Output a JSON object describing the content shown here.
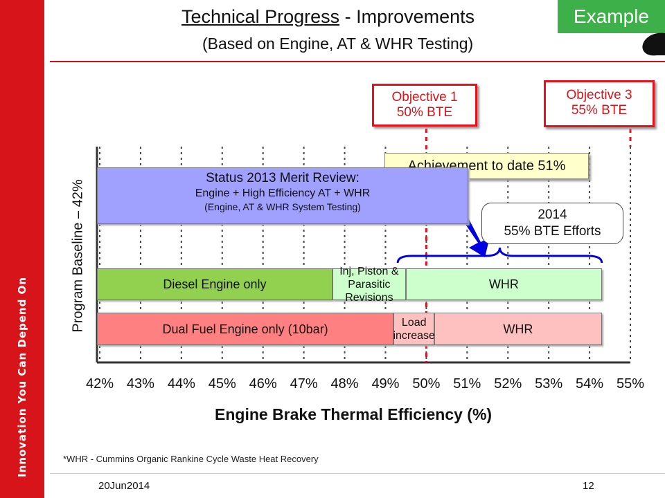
{
  "sidebar": {
    "tagline": "Innovation You Can Depend On"
  },
  "header": {
    "title_underlined": "Technical Progress",
    "title_rest": " - Improvements",
    "subtitle": "(Based on Engine, AT & WHR Testing)",
    "badge": "Example"
  },
  "colors": {
    "brand_red": "#d7141a",
    "badge_green": "#3eb049",
    "status_blue": "#a0a0ff",
    "diesel_green": "#92d050",
    "light_green": "#ccffcc",
    "dual_red": "#ff8080",
    "light_red": "#ffc0c0",
    "achievement_yellow": "#ffffcc",
    "arrow_blue": "#0000e0"
  },
  "annotations": {
    "objective1": {
      "line1": "Objective 1",
      "line2": "50% BTE",
      "x": 50
    },
    "objective3": {
      "line1": "Objective 3",
      "line2": "55% BTE",
      "x": 55
    },
    "achievement": "Achievement to date 51%",
    "efforts": {
      "line1": "2014",
      "line2": "55% BTE Efforts"
    },
    "status": {
      "line1": "Status 2013 Merit Review:",
      "line2": "Engine + High Efficiency AT + WHR",
      "line3": "(Engine, AT & WHR System Testing)"
    }
  },
  "chart_data": {
    "type": "bar",
    "orientation": "horizontal-stacked",
    "xlabel": "Engine Brake Thermal Efficiency (%)",
    "ylabel": "Program Baseline – 42%",
    "xlim": [
      42,
      55
    ],
    "x_ticks": [
      "42%",
      "43%",
      "44%",
      "45%",
      "46%",
      "47%",
      "48%",
      "49%",
      "50%",
      "51%",
      "52%",
      "53%",
      "54%",
      "55%"
    ],
    "grid": "vertical dashed",
    "rows": [
      {
        "segments": [
          {
            "label": "Diesel Engine only",
            "start": 42,
            "end": 47.7,
            "color": "#92d050"
          },
          {
            "label": "Inj, Piston & Parasitic Revisions",
            "start": 47.7,
            "end": 49.5,
            "color": "#ccffcc"
          },
          {
            "label": "WHR",
            "start": 49.5,
            "end": 54.3,
            "color": "#ccffcc"
          }
        ]
      },
      {
        "segments": [
          {
            "label": "Dual Fuel Engine only (10bar)",
            "start": 42,
            "end": 49.2,
            "color": "#ff8080"
          },
          {
            "label": "Load increase",
            "start": 49.2,
            "end": 50.2,
            "color": "#ffc0c0"
          },
          {
            "label": "WHR",
            "start": 50.2,
            "end": 54.3,
            "color": "#ffc0c0"
          }
        ]
      }
    ],
    "status_2013": {
      "start": 42,
      "end": 51
    },
    "efforts_brace": {
      "start": 49.3,
      "end": 54.3
    }
  },
  "footnote": "*WHR -  Cummins Organic Rankine Cycle Waste Heat Recovery",
  "footer": {
    "date": "20Jun2014",
    "page": "12"
  }
}
